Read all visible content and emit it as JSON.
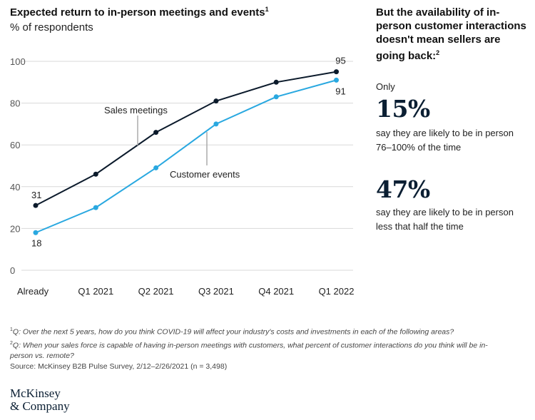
{
  "header": {
    "title": "Expected return to in-person meetings and events",
    "title_note": "1",
    "subtitle": "% of respondents"
  },
  "chart_data": {
    "type": "line",
    "categories": [
      "Already",
      "Q1 2021",
      "Q2 2021",
      "Q3 2021",
      "Q4 2021",
      "Q1 2022"
    ],
    "y_ticks": [
      "0",
      "20",
      "40",
      "60",
      "80",
      "100"
    ],
    "ylim": [
      0,
      100
    ],
    "grid": true,
    "series": [
      {
        "name": "Sales meetings",
        "color": "#0b1a2b",
        "values": [
          31,
          46,
          66,
          81,
          90,
          95
        ],
        "start_label": "31",
        "end_label": "95"
      },
      {
        "name": "Customer events",
        "color": "#29a8e0",
        "values": [
          18,
          30,
          49,
          70,
          83,
          91
        ],
        "start_label": "18",
        "end_label": "91"
      }
    ]
  },
  "sidebar": {
    "heading": "But the availability of in-person customer interactions doesn't mean sellers are going back:",
    "heading_note": "2",
    "only_label": "Only",
    "stat1_value": "15%",
    "stat1_text": "say they are likely to be in person 76–100% of the time",
    "stat2_value": "47%",
    "stat2_text": "say they are likely to be in person less that half the time"
  },
  "footnotes": {
    "note1_mark": "1",
    "note1": "Q: Over the next 5 years, how do you think COVID-19 will affect your industry's costs and investments in each of the following areas?",
    "note2_mark": "2",
    "note2": "Q: When your sales force is capable of having in-person meetings with customers, what percent of customer interactions do you think will be in-person vs. remote?",
    "source": "Source: McKinsey B2B Pulse Survey, 2/12–2/26/2021 (n = 3,498)"
  },
  "logo": {
    "line1": "McKinsey",
    "line2": "& Company"
  }
}
